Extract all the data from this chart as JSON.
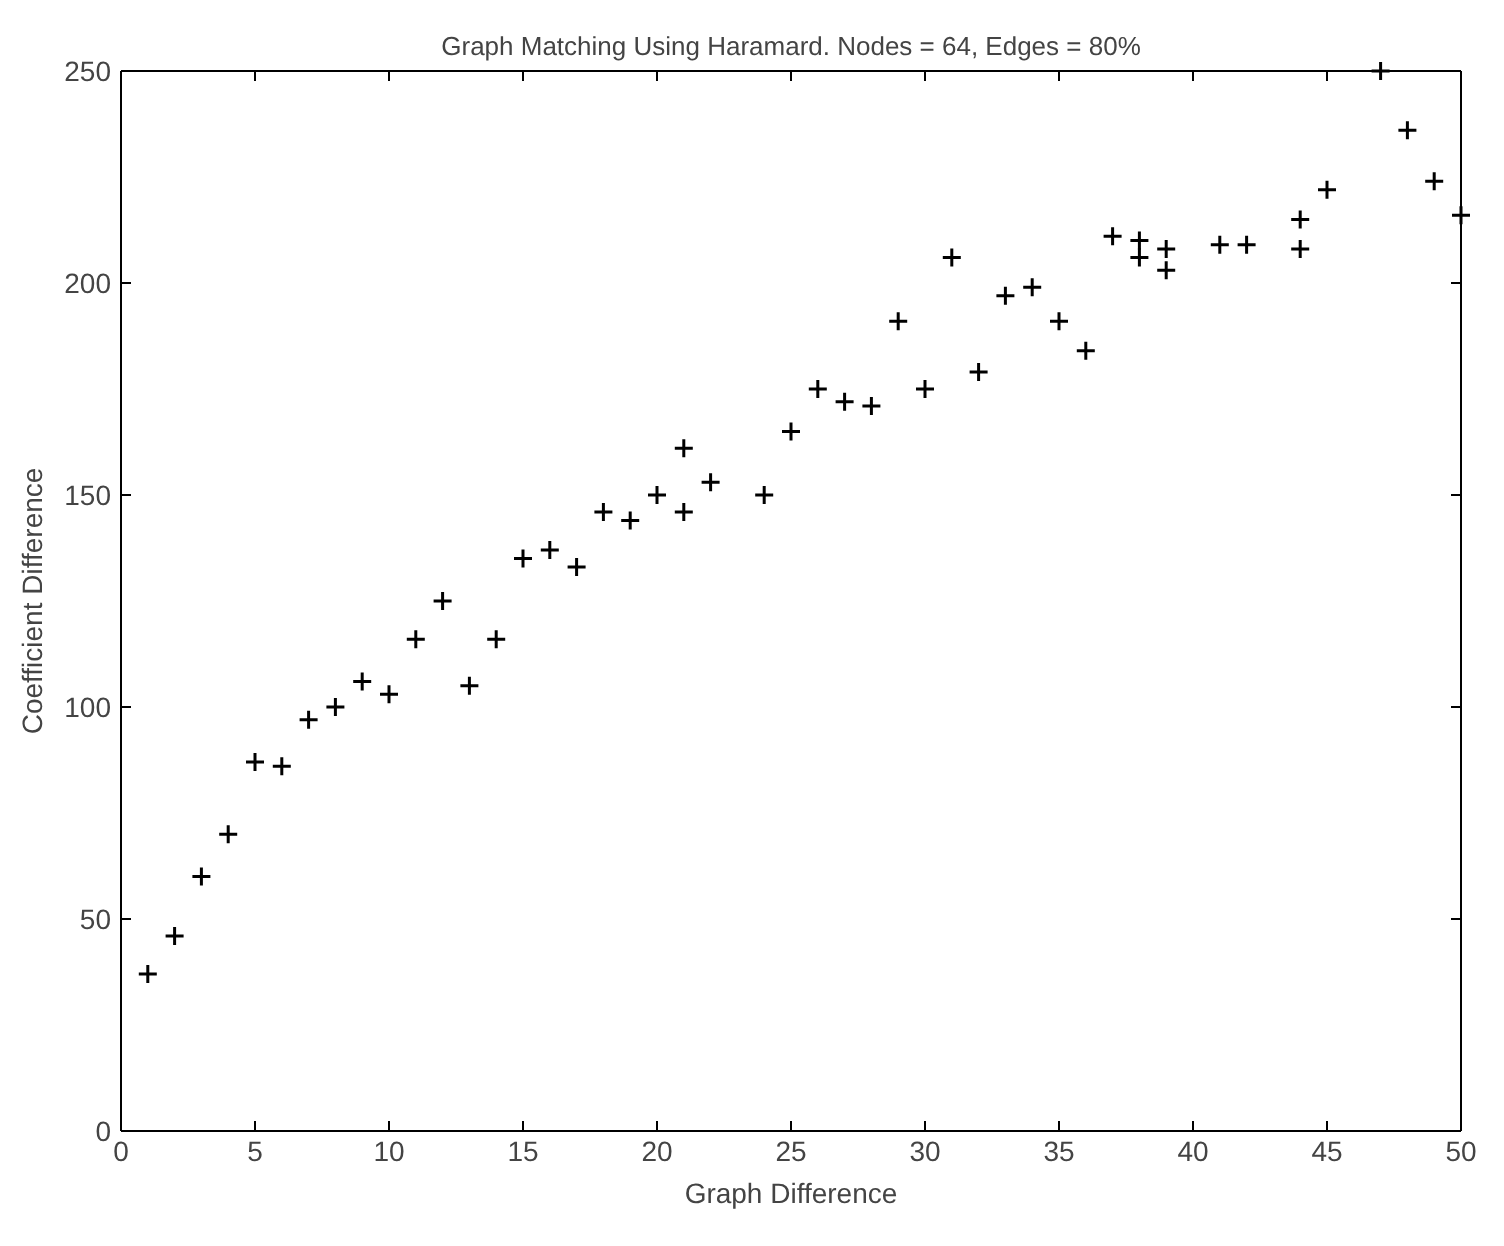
{
  "chart_data": {
    "type": "scatter",
    "title": "Graph Matching Using Haramard. Nodes = 64, Edges = 80%",
    "xlabel": "Graph Difference",
    "ylabel": "Coefficient Difference",
    "x": [
      1,
      2,
      3,
      4,
      5,
      6,
      7,
      8,
      9,
      10,
      11,
      12,
      13,
      14,
      15,
      16,
      17,
      18,
      19,
      20,
      21,
      21,
      22,
      24,
      25,
      26,
      27,
      28,
      29,
      30,
      31,
      32,
      33,
      34,
      35,
      36,
      37,
      38,
      38,
      39,
      39,
      41,
      42,
      44,
      44,
      45,
      47,
      48,
      49,
      50
    ],
    "series": [
      {
        "color": "#000000",
        "values": [
          37,
          46,
          60,
          70,
          87,
          86,
          97,
          100,
          106,
          103,
          116,
          125,
          105,
          116,
          135,
          137,
          133,
          146,
          144,
          150,
          161,
          146,
          153,
          150,
          165,
          175,
          172,
          171,
          191,
          175,
          206,
          179,
          197,
          199,
          191,
          184,
          211,
          210,
          206,
          208,
          203,
          209,
          209,
          215,
          208,
          222,
          250,
          236,
          224,
          216
        ]
      }
    ],
    "xlim": [
      0,
      50
    ],
    "ylim": [
      0,
      250
    ],
    "xticks": [
      0,
      5,
      10,
      15,
      20,
      25,
      30,
      35,
      40,
      45,
      50
    ],
    "yticks": [
      0,
      50,
      100,
      150,
      200,
      250
    ],
    "marker": "cross",
    "grid": false
  }
}
